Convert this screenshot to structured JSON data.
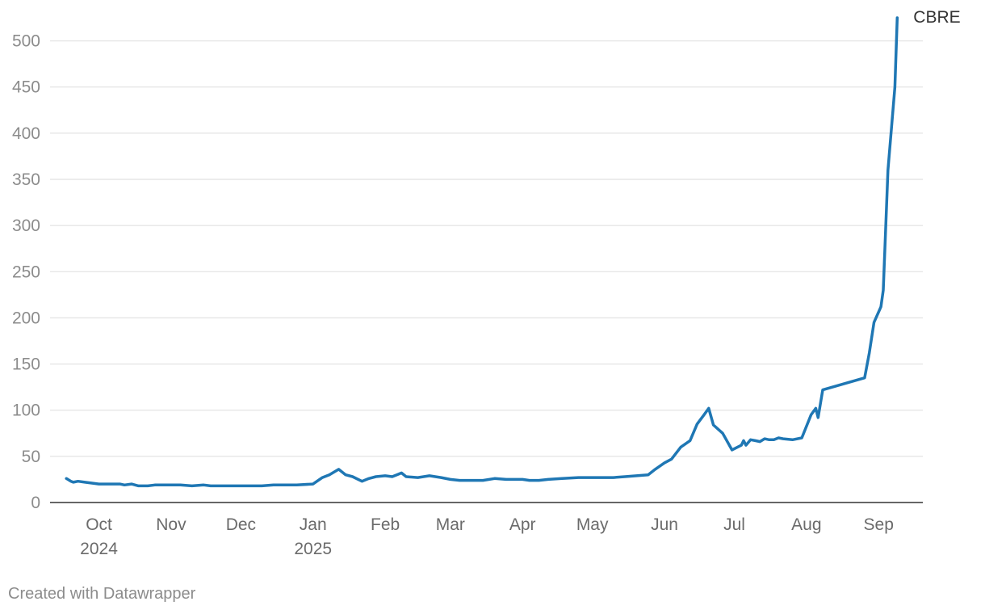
{
  "footer": "Created with Datawrapper",
  "colors": {
    "series": "#1f77b4",
    "grid": "#e6e6e6",
    "axis": "#333333",
    "tick_text": "#8c8c8c",
    "label_text": "#333333"
  },
  "chart_data": {
    "type": "line",
    "title": "",
    "xlabel": "",
    "ylabel": "",
    "ylim": [
      0,
      525
    ],
    "xlim": [
      "2024-09-10",
      "2025-09-20"
    ],
    "grid": true,
    "y_ticks": [
      0,
      50,
      100,
      150,
      200,
      250,
      300,
      350,
      400,
      450,
      500
    ],
    "x_ticks": [
      {
        "date": "2024-10-01",
        "label": "Oct",
        "sublabel": "2024"
      },
      {
        "date": "2024-11-01",
        "label": "Nov",
        "sublabel": ""
      },
      {
        "date": "2024-12-01",
        "label": "Dec",
        "sublabel": ""
      },
      {
        "date": "2025-01-01",
        "label": "Jan",
        "sublabel": "2025"
      },
      {
        "date": "2025-02-01",
        "label": "Feb",
        "sublabel": ""
      },
      {
        "date": "2025-03-01",
        "label": "Mar",
        "sublabel": ""
      },
      {
        "date": "2025-04-01",
        "label": "Apr",
        "sublabel": ""
      },
      {
        "date": "2025-05-01",
        "label": "May",
        "sublabel": ""
      },
      {
        "date": "2025-06-01",
        "label": "Jun",
        "sublabel": ""
      },
      {
        "date": "2025-07-01",
        "label": "Jul",
        "sublabel": ""
      },
      {
        "date": "2025-08-01",
        "label": "Aug",
        "sublabel": ""
      },
      {
        "date": "2025-09-01",
        "label": "Sep",
        "sublabel": ""
      }
    ],
    "series": [
      {
        "name": "CBRE",
        "x": [
          "2024-09-17",
          "2024-09-19",
          "2024-09-20",
          "2024-09-22",
          "2024-09-25",
          "2024-09-28",
          "2024-10-01",
          "2024-10-05",
          "2024-10-10",
          "2024-10-12",
          "2024-10-15",
          "2024-10-18",
          "2024-10-22",
          "2024-10-25",
          "2024-10-28",
          "2024-11-01",
          "2024-11-05",
          "2024-11-10",
          "2024-11-15",
          "2024-11-18",
          "2024-11-22",
          "2024-11-25",
          "2024-12-01",
          "2024-12-05",
          "2024-12-10",
          "2024-12-15",
          "2024-12-20",
          "2024-12-25",
          "2025-01-01",
          "2025-01-05",
          "2025-01-08",
          "2025-01-12",
          "2025-01-15",
          "2025-01-18",
          "2025-01-22",
          "2025-01-25",
          "2025-01-28",
          "2025-02-01",
          "2025-02-04",
          "2025-02-06",
          "2025-02-08",
          "2025-02-10",
          "2025-02-15",
          "2025-02-20",
          "2025-02-25",
          "2025-03-01",
          "2025-03-05",
          "2025-03-10",
          "2025-03-15",
          "2025-03-20",
          "2025-03-25",
          "2025-04-01",
          "2025-04-04",
          "2025-04-08",
          "2025-04-12",
          "2025-04-18",
          "2025-04-25",
          "2025-05-01",
          "2025-05-05",
          "2025-05-10",
          "2025-05-15",
          "2025-05-20",
          "2025-05-25",
          "2025-05-28",
          "2025-06-01",
          "2025-06-04",
          "2025-06-08",
          "2025-06-12",
          "2025-06-15",
          "2025-06-18",
          "2025-06-20",
          "2025-06-22",
          "2025-06-26",
          "2025-06-30",
          "2025-07-04",
          "2025-07-05",
          "2025-07-06",
          "2025-07-08",
          "2025-07-10",
          "2025-07-12",
          "2025-07-14",
          "2025-07-16",
          "2025-07-18",
          "2025-07-20",
          "2025-07-22",
          "2025-07-26",
          "2025-07-30",
          "2025-08-03",
          "2025-08-05",
          "2025-08-06",
          "2025-08-08",
          "2025-08-26",
          "2025-08-28",
          "2025-08-30",
          "2025-09-02",
          "2025-09-03",
          "2025-09-05",
          "2025-09-08",
          "2025-09-09"
        ],
        "values": [
          26,
          23,
          22,
          23,
          22,
          21,
          20,
          20,
          20,
          19,
          20,
          18,
          18,
          19,
          19,
          19,
          19,
          18,
          19,
          18,
          18,
          18,
          18,
          18,
          18,
          19,
          19,
          19,
          20,
          27,
          30,
          36,
          30,
          28,
          23,
          26,
          28,
          29,
          28,
          30,
          32,
          28,
          27,
          29,
          27,
          25,
          24,
          24,
          24,
          26,
          25,
          25,
          24,
          24,
          25,
          26,
          27,
          27,
          27,
          27,
          28,
          29,
          30,
          36,
          43,
          47,
          60,
          67,
          85,
          95,
          102,
          84,
          75,
          57,
          62,
          67,
          62,
          68,
          67,
          66,
          69,
          68,
          68,
          70,
          69,
          68,
          70,
          95,
          102,
          92,
          122,
          135,
          162,
          195,
          212,
          230,
          360,
          450,
          525
        ]
      }
    ]
  }
}
